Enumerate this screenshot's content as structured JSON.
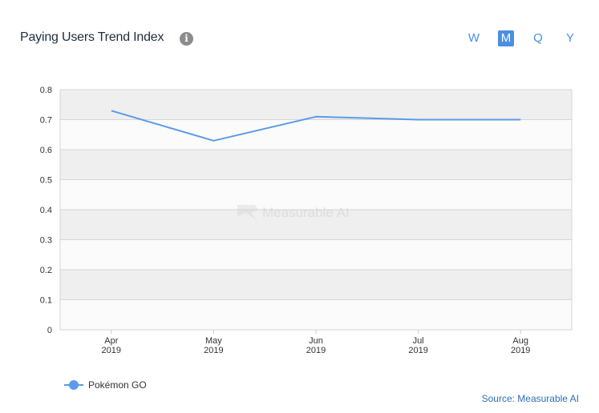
{
  "header": {
    "title": "Paying Users Trend Index",
    "info_icon": "info-icon"
  },
  "period_tabs": [
    {
      "label": "W",
      "active": false
    },
    {
      "label": "M",
      "active": true
    },
    {
      "label": "Q",
      "active": false
    },
    {
      "label": "Y",
      "active": false
    }
  ],
  "colors": {
    "accent": "#4a90e2",
    "series": "#5b9be8",
    "band": "#efefef",
    "title": "#1f2d3d",
    "source": "#2e6fb7"
  },
  "watermark": "Measurable AI",
  "source_text": "Source: Measurable AI",
  "chart_data": {
    "type": "line",
    "title": "Paying Users Trend Index",
    "categories": [
      [
        "Apr",
        "2019"
      ],
      [
        "May",
        "2019"
      ],
      [
        "Jun",
        "2019"
      ],
      [
        "Jul",
        "2019"
      ],
      [
        "Aug",
        "2019"
      ]
    ],
    "series": [
      {
        "name": "Pokémon GO",
        "values": [
          0.73,
          0.63,
          0.71,
          0.7,
          0.7
        ]
      }
    ],
    "ylim": [
      0,
      0.8
    ],
    "yticks": [
      "0",
      "0.1",
      "0.2",
      "0.3",
      "0.4",
      "0.5",
      "0.6",
      "0.7",
      "0.8"
    ],
    "grid": true,
    "alternating_bands": true,
    "legend_position": "bottom-left"
  }
}
